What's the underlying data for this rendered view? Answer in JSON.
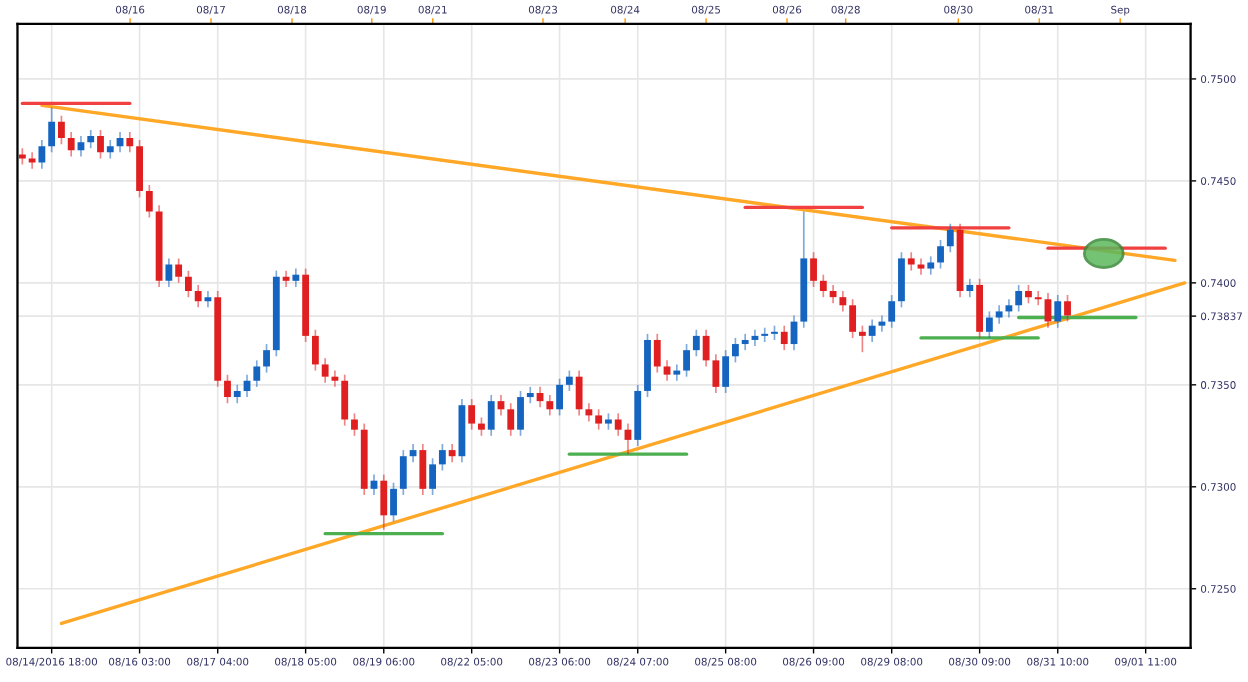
{
  "chart_data": {
    "type": "candlestick",
    "ylim": [
      0.7221,
      0.7527
    ],
    "categories": [
      null,
      null,
      null,
      "08/14/2016 18:00",
      null,
      null,
      null,
      null,
      null,
      null,
      null,
      null,
      "08/16 03:00",
      null,
      null,
      null,
      null,
      null,
      null,
      null,
      "08/17 04:00",
      null,
      null,
      null,
      null,
      null,
      null,
      null,
      null,
      "08/18 05:00",
      null,
      null,
      null,
      null,
      null,
      null,
      null,
      "08/19 06:00",
      null,
      null,
      null,
      null,
      null,
      null,
      null,
      null,
      "08/22 05:00",
      null,
      null,
      null,
      null,
      null,
      null,
      null,
      null,
      "08/23 06:00",
      null,
      null,
      null,
      null,
      null,
      null,
      null,
      "08/24 07:00",
      null,
      null,
      null,
      null,
      null,
      null,
      null,
      null,
      "08/25 08:00",
      null,
      null,
      null,
      null,
      null,
      null,
      null,
      null,
      "08/26 09:00",
      null,
      null,
      null,
      null,
      null,
      null,
      null,
      "08/29 08:00",
      null,
      null,
      null,
      null,
      null,
      null,
      null,
      null,
      "08/30 09:00",
      null,
      null,
      null,
      null,
      null,
      null,
      null,
      "08/31 10:00",
      null,
      null,
      null,
      null,
      null,
      null,
      null,
      null,
      "09/01 11:00",
      null,
      null,
      null,
      null
    ],
    "annotations": [
      "08/16",
      "08/17",
      "08/18",
      "08/19",
      "08/21",
      "08/23",
      "08/24",
      "08/25",
      "08/26",
      "08/28",
      "08/30",
      "08/31",
      "Sep"
    ],
    "yticks": [
      {
        "value": 0.725,
        "label": "0.7250"
      },
      {
        "value": 0.73,
        "label": "0.7300"
      },
      {
        "value": 0.735,
        "label": "0.7350"
      },
      {
        "value": 0.73837,
        "label": "0.73837"
      },
      {
        "value": 0.74,
        "label": "0.7400"
      },
      {
        "value": 0.745,
        "label": "0.7450"
      },
      {
        "value": 0.75,
        "label": "0.7500"
      }
    ],
    "grid": true,
    "series": [
      {
        "type": "line",
        "color": "#ffa726",
        "values": [
          null,
          null,
          0.7487,
          null,
          null,
          null,
          null,
          null,
          null,
          null,
          null,
          null,
          null,
          null,
          null,
          null,
          null,
          null,
          null,
          null,
          null,
          null,
          null,
          null,
          null,
          null,
          null,
          null,
          null,
          null,
          null,
          null,
          null,
          null,
          null,
          null,
          null,
          null,
          null,
          null,
          null,
          null,
          null,
          null,
          null,
          null,
          null,
          null,
          null,
          null,
          null,
          null,
          null,
          null,
          null,
          null,
          null,
          null,
          null,
          null,
          null,
          null,
          null,
          null,
          null,
          null,
          null,
          null,
          null,
          null,
          null,
          null,
          null,
          null,
          null,
          null,
          null,
          null,
          null,
          null,
          null,
          null,
          null,
          null,
          null,
          null,
          null,
          null,
          null,
          null,
          null,
          null,
          null,
          null,
          null,
          null,
          null,
          null,
          null,
          null,
          null,
          null,
          null,
          null,
          null,
          null,
          null,
          null,
          null,
          null,
          null,
          null,
          null,
          null,
          null,
          null,
          null,
          null,
          0.7411,
          null
        ]
      },
      {
        "type": "line",
        "color": "#ffa726",
        "values": [
          null,
          null,
          null,
          null,
          0.7233,
          null,
          null,
          null,
          null,
          null,
          null,
          null,
          null,
          null,
          null,
          null,
          null,
          null,
          null,
          null,
          null,
          null,
          null,
          null,
          null,
          null,
          null,
          null,
          null,
          null,
          null,
          null,
          null,
          null,
          null,
          null,
          null,
          null,
          null,
          null,
          null,
          null,
          null,
          null,
          null,
          null,
          null,
          null,
          null,
          null,
          null,
          null,
          null,
          null,
          null,
          null,
          null,
          null,
          null,
          null,
          null,
          null,
          null,
          null,
          null,
          null,
          null,
          null,
          null,
          null,
          null,
          null,
          null,
          null,
          null,
          null,
          null,
          null,
          null,
          null,
          null,
          null,
          null,
          null,
          null,
          null,
          null,
          null,
          null,
          null,
          null,
          null,
          null,
          null,
          null,
          null,
          null,
          null,
          null,
          null,
          null,
          null,
          null,
          null,
          null,
          null,
          null,
          null,
          null,
          null,
          null,
          null,
          null,
          null,
          null,
          null,
          null,
          null,
          null,
          0.74
        ]
      },
      {
        "type": "line",
        "color": "#f04040",
        "values": [
          0.7488,
          null,
          null,
          null,
          null,
          null,
          null,
          null,
          null,
          null,
          null,
          0.7488,
          null,
          null,
          null,
          null,
          null,
          null,
          null,
          null,
          null,
          null,
          null,
          null,
          null,
          null,
          null,
          null,
          null,
          null,
          null,
          null,
          null,
          null,
          null,
          null,
          null,
          null,
          null,
          null,
          null,
          null,
          null,
          null,
          null,
          null,
          null,
          null,
          null,
          null,
          null,
          null,
          null,
          null,
          null,
          null,
          null,
          null,
          null,
          null,
          null,
          null,
          null,
          null,
          null,
          null,
          null,
          null,
          null,
          null,
          null,
          null,
          null,
          null,
          null,
          null,
          null,
          null,
          null,
          null,
          null,
          null,
          null,
          null,
          null,
          null,
          null,
          null,
          null,
          null,
          null,
          null,
          null,
          null,
          null,
          null,
          null,
          null,
          null,
          null,
          null,
          null,
          null,
          null,
          null,
          null,
          null,
          null,
          null,
          null,
          null,
          null,
          null,
          null,
          null,
          null,
          null,
          null,
          null,
          null
        ]
      },
      {
        "type": "line",
        "color": "#4caf50",
        "values": [
          null,
          null,
          null,
          null,
          null,
          null,
          null,
          null,
          null,
          null,
          null,
          null,
          null,
          null,
          null,
          null,
          null,
          null,
          null,
          null,
          null,
          null,
          null,
          null,
          null,
          null,
          null,
          null,
          null,
          null,
          null,
          0.7277,
          null,
          null,
          null,
          null,
          null,
          null,
          null,
          null,
          null,
          null,
          null,
          0.7277,
          null,
          null,
          null,
          null,
          null,
          null,
          null,
          null,
          null,
          null,
          null,
          null,
          null,
          null,
          null,
          null,
          null,
          null,
          null,
          null,
          null,
          null,
          null,
          null,
          null,
          null,
          null,
          null,
          null,
          null,
          null,
          null,
          null,
          null,
          null,
          null,
          null,
          null,
          null,
          null,
          null,
          null,
          null,
          null,
          null,
          null,
          null,
          null,
          null,
          null,
          null,
          null,
          null,
          null,
          null,
          null,
          null,
          null,
          null,
          null,
          null,
          null,
          null,
          null,
          null,
          null,
          null,
          null,
          null,
          null,
          null,
          null,
          null,
          null,
          null,
          null
        ]
      },
      {
        "type": "line",
        "color": "#4caf50",
        "values": [
          null,
          null,
          null,
          null,
          null,
          null,
          null,
          null,
          null,
          null,
          null,
          null,
          null,
          null,
          null,
          null,
          null,
          null,
          null,
          null,
          null,
          null,
          null,
          null,
          null,
          null,
          null,
          null,
          null,
          null,
          null,
          null,
          null,
          null,
          null,
          null,
          null,
          null,
          null,
          null,
          null,
          null,
          null,
          null,
          null,
          null,
          null,
          null,
          null,
          null,
          null,
          null,
          null,
          null,
          null,
          null,
          0.7316,
          null,
          null,
          null,
          null,
          null,
          null,
          null,
          null,
          null,
          null,
          null,
          0.7316,
          null,
          null,
          null,
          null,
          null,
          null,
          null,
          null,
          null,
          null,
          null,
          null,
          null,
          null,
          null,
          null,
          null,
          null,
          null,
          null,
          null,
          null,
          null,
          null,
          null,
          null,
          null,
          null,
          null,
          null,
          null,
          null,
          null,
          null,
          null,
          null,
          null,
          null,
          null,
          null,
          null,
          null,
          null,
          null,
          null,
          null,
          null,
          null,
          null,
          null,
          null
        ]
      },
      {
        "type": "line",
        "color": "#f04040",
        "values": [
          null,
          null,
          null,
          null,
          null,
          null,
          null,
          null,
          null,
          null,
          null,
          null,
          null,
          null,
          null,
          null,
          null,
          null,
          null,
          null,
          null,
          null,
          null,
          null,
          null,
          null,
          null,
          null,
          null,
          null,
          null,
          null,
          null,
          null,
          null,
          null,
          null,
          null,
          null,
          null,
          null,
          null,
          null,
          null,
          null,
          null,
          null,
          null,
          null,
          null,
          null,
          null,
          null,
          null,
          null,
          null,
          null,
          null,
          null,
          null,
          null,
          null,
          null,
          null,
          null,
          null,
          null,
          null,
          null,
          null,
          null,
          null,
          null,
          null,
          0.7437,
          null,
          null,
          null,
          null,
          null,
          null,
          null,
          null,
          null,
          null,
          null,
          0.7437,
          null,
          null,
          null,
          null,
          null,
          null,
          null,
          null,
          null,
          null,
          null,
          null,
          null,
          null,
          null,
          null,
          null,
          null,
          null,
          null,
          null,
          null,
          null,
          null,
          null,
          null,
          null,
          null,
          null,
          null,
          null,
          null,
          null
        ]
      },
      {
        "type": "line",
        "color": "#f04040",
        "values": [
          null,
          null,
          null,
          null,
          null,
          null,
          null,
          null,
          null,
          null,
          null,
          null,
          null,
          null,
          null,
          null,
          null,
          null,
          null,
          null,
          null,
          null,
          null,
          null,
          null,
          null,
          null,
          null,
          null,
          null,
          null,
          null,
          null,
          null,
          null,
          null,
          null,
          null,
          null,
          null,
          null,
          null,
          null,
          null,
          null,
          null,
          null,
          null,
          null,
          null,
          null,
          null,
          null,
          null,
          null,
          null,
          null,
          null,
          null,
          null,
          null,
          null,
          null,
          null,
          null,
          null,
          null,
          null,
          null,
          null,
          null,
          null,
          null,
          null,
          null,
          null,
          null,
          null,
          null,
          null,
          null,
          null,
          null,
          null,
          null,
          null,
          null,
          null,
          null,
          0.7427,
          null,
          null,
          null,
          null,
          null,
          null,
          null,
          null,
          null,
          null,
          null,
          0.7427,
          null,
          null,
          null,
          null,
          null,
          null,
          null,
          null,
          null,
          null,
          null,
          null,
          null,
          null,
          null,
          null,
          null,
          null
        ]
      },
      {
        "type": "line",
        "color": "#4caf50",
        "values": [
          null,
          null,
          null,
          null,
          null,
          null,
          null,
          null,
          null,
          null,
          null,
          null,
          null,
          null,
          null,
          null,
          null,
          null,
          null,
          null,
          null,
          null,
          null,
          null,
          null,
          null,
          null,
          null,
          null,
          null,
          null,
          null,
          null,
          null,
          null,
          null,
          null,
          null,
          null,
          null,
          null,
          null,
          null,
          null,
          null,
          null,
          null,
          null,
          null,
          null,
          null,
          null,
          null,
          null,
          null,
          null,
          null,
          null,
          null,
          null,
          null,
          null,
          null,
          null,
          null,
          null,
          null,
          null,
          null,
          null,
          null,
          null,
          null,
          null,
          null,
          null,
          null,
          null,
          null,
          null,
          null,
          null,
          null,
          null,
          null,
          null,
          null,
          null,
          null,
          null,
          null,
          null,
          0.7373,
          null,
          null,
          null,
          null,
          null,
          null,
          null,
          null,
          null,
          null,
          null,
          0.7373,
          null,
          null,
          null,
          null,
          null,
          null,
          null,
          null,
          null,
          null,
          null,
          null,
          null,
          null,
          null
        ]
      },
      {
        "type": "line",
        "color": "#f04040",
        "values": [
          null,
          null,
          null,
          null,
          null,
          null,
          null,
          null,
          null,
          null,
          null,
          null,
          null,
          null,
          null,
          null,
          null,
          null,
          null,
          null,
          null,
          null,
          null,
          null,
          null,
          null,
          null,
          null,
          null,
          null,
          null,
          null,
          null,
          null,
          null,
          null,
          null,
          null,
          null,
          null,
          null,
          null,
          null,
          null,
          null,
          null,
          null,
          null,
          null,
          null,
          null,
          null,
          null,
          null,
          null,
          null,
          null,
          null,
          null,
          null,
          null,
          null,
          null,
          null,
          null,
          null,
          null,
          null,
          null,
          null,
          null,
          null,
          null,
          null,
          null,
          null,
          null,
          null,
          null,
          null,
          null,
          null,
          null,
          null,
          null,
          null,
          null,
          null,
          null,
          null,
          null,
          null,
          null,
          null,
          null,
          null,
          null,
          null,
          null,
          null,
          null,
          null,
          null,
          null,
          null,
          0.7417,
          null,
          null,
          null,
          null,
          null,
          null,
          null,
          null,
          null,
          null,
          null,
          0.7417,
          null,
          null
        ]
      },
      {
        "type": "line",
        "color": "#4caf50",
        "values": [
          null,
          null,
          null,
          null,
          null,
          null,
          null,
          null,
          null,
          null,
          null,
          null,
          null,
          null,
          null,
          null,
          null,
          null,
          null,
          null,
          null,
          null,
          null,
          null,
          null,
          null,
          null,
          null,
          null,
          null,
          null,
          null,
          null,
          null,
          null,
          null,
          null,
          null,
          null,
          null,
          null,
          null,
          null,
          null,
          null,
          null,
          null,
          null,
          null,
          null,
          null,
          null,
          null,
          null,
          null,
          null,
          null,
          null,
          null,
          null,
          null,
          null,
          null,
          null,
          null,
          null,
          null,
          null,
          null,
          null,
          null,
          null,
          null,
          null,
          null,
          null,
          null,
          null,
          null,
          null,
          null,
          null,
          null,
          null,
          null,
          null,
          null,
          null,
          null,
          null,
          null,
          null,
          null,
          null,
          null,
          null,
          null,
          null,
          null,
          null,
          null,
          null,
          0.7383,
          null,
          null,
          null,
          null,
          null,
          null,
          null,
          null,
          null,
          null,
          null,
          0.7383,
          null,
          null,
          null,
          null,
          null
        ]
      },
      {
        "ohlc": [
          [
            0.7463,
            0.7466,
            0.7458,
            0.7461
          ],
          [
            0.7461,
            0.7464,
            0.7456,
            0.7459
          ],
          [
            0.7459,
            0.747,
            0.7456,
            0.7467
          ],
          [
            0.7467,
            0.7486,
            0.7464,
            0.7479
          ],
          [
            0.7479,
            0.7482,
            0.7468,
            0.7471
          ],
          [
            0.7471,
            0.7474,
            0.7462,
            0.7465
          ],
          [
            0.7465,
            0.7472,
            0.7462,
            0.7469
          ],
          [
            0.7469,
            0.7475,
            0.7466,
            0.7472
          ],
          [
            0.7472,
            0.7475,
            0.7461,
            0.7464
          ],
          [
            0.7464,
            0.747,
            0.7461,
            0.7467
          ],
          [
            0.7467,
            0.7474,
            0.7464,
            0.7471
          ],
          [
            0.7471,
            0.7474,
            0.7464,
            0.7467
          ],
          [
            0.7467,
            0.747,
            0.7442,
            0.7445
          ],
          [
            0.7445,
            0.7448,
            0.7432,
            0.7435
          ],
          [
            0.7435,
            0.7438,
            0.7398,
            0.7401
          ],
          [
            0.7401,
            0.7412,
            0.7398,
            0.7409
          ],
          [
            0.7409,
            0.7412,
            0.74,
            0.7403
          ],
          [
            0.7403,
            0.7406,
            0.7393,
            0.7396
          ],
          [
            0.7396,
            0.7399,
            0.7388,
            0.7391
          ],
          [
            0.7391,
            0.7396,
            0.7388,
            0.7393
          ],
          [
            0.7393,
            0.7396,
            0.7349,
            0.7352
          ],
          [
            0.7352,
            0.7355,
            0.7341,
            0.7344
          ],
          [
            0.7344,
            0.735,
            0.7341,
            0.7347
          ],
          [
            0.7347,
            0.7355,
            0.7344,
            0.7352
          ],
          [
            0.7352,
            0.7362,
            0.7349,
            0.7359
          ],
          [
            0.7359,
            0.737,
            0.7356,
            0.7367
          ],
          [
            0.7367,
            0.7406,
            0.7364,
            0.7403
          ],
          [
            0.7403,
            0.7406,
            0.7398,
            0.7401
          ],
          [
            0.7401,
            0.7407,
            0.7398,
            0.7404
          ],
          [
            0.7404,
            0.7407,
            0.7371,
            0.7374
          ],
          [
            0.7374,
            0.7377,
            0.7357,
            0.736
          ],
          [
            0.736,
            0.7363,
            0.7351,
            0.7354
          ],
          [
            0.7354,
            0.7357,
            0.7349,
            0.7352
          ],
          [
            0.7352,
            0.7355,
            0.733,
            0.7333
          ],
          [
            0.7333,
            0.7336,
            0.7325,
            0.7328
          ],
          [
            0.7328,
            0.7331,
            0.7296,
            0.7299
          ],
          [
            0.7299,
            0.7306,
            0.7296,
            0.7303
          ],
          [
            0.7303,
            0.7306,
            0.7279,
            0.7286
          ],
          [
            0.7286,
            0.7302,
            0.7283,
            0.7299
          ],
          [
            0.7299,
            0.7318,
            0.7296,
            0.7315
          ],
          [
            0.7315,
            0.7321,
            0.7312,
            0.7318
          ],
          [
            0.7318,
            0.7321,
            0.7296,
            0.7299
          ],
          [
            0.7299,
            0.7314,
            0.7296,
            0.7311
          ],
          [
            0.7311,
            0.7321,
            0.7308,
            0.7318
          ],
          [
            0.7318,
            0.7321,
            0.7312,
            0.7315
          ],
          [
            0.7315,
            0.7343,
            0.7312,
            0.734
          ],
          [
            0.734,
            0.7343,
            0.7328,
            0.7331
          ],
          [
            0.7331,
            0.7334,
            0.7325,
            0.7328
          ],
          [
            0.7328,
            0.7345,
            0.7325,
            0.7342
          ],
          [
            0.7342,
            0.7345,
            0.7335,
            0.7338
          ],
          [
            0.7338,
            0.7341,
            0.7325,
            0.7328
          ],
          [
            0.7328,
            0.7347,
            0.7325,
            0.7344
          ],
          [
            0.7344,
            0.7349,
            0.7341,
            0.7346
          ],
          [
            0.7346,
            0.7349,
            0.7339,
            0.7342
          ],
          [
            0.7342,
            0.7345,
            0.7335,
            0.7338
          ],
          [
            0.7338,
            0.7353,
            0.7335,
            0.735
          ],
          [
            0.735,
            0.7357,
            0.7347,
            0.7354
          ],
          [
            0.7354,
            0.7357,
            0.7335,
            0.7338
          ],
          [
            0.7338,
            0.7341,
            0.7332,
            0.7335
          ],
          [
            0.7335,
            0.7338,
            0.7328,
            0.7331
          ],
          [
            0.7331,
            0.7336,
            0.7328,
            0.7333
          ],
          [
            0.7333,
            0.7336,
            0.7325,
            0.7328
          ],
          [
            0.7328,
            0.7331,
            0.7316,
            0.7323
          ],
          [
            0.7323,
            0.735,
            0.732,
            0.7347
          ],
          [
            0.7347,
            0.7375,
            0.7344,
            0.7372
          ],
          [
            0.7372,
            0.7375,
            0.7356,
            0.7359
          ],
          [
            0.7359,
            0.7362,
            0.7352,
            0.7355
          ],
          [
            0.7355,
            0.736,
            0.7352,
            0.7357
          ],
          [
            0.7357,
            0.737,
            0.7354,
            0.7367
          ],
          [
            0.7367,
            0.7377,
            0.7364,
            0.7374
          ],
          [
            0.7374,
            0.7377,
            0.7359,
            0.7362
          ],
          [
            0.7362,
            0.7365,
            0.7346,
            0.7349
          ],
          [
            0.7349,
            0.7367,
            0.7346,
            0.7364
          ],
          [
            0.7364,
            0.7373,
            0.7361,
            0.737
          ],
          [
            0.737,
            0.7375,
            0.7367,
            0.7372
          ],
          [
            0.7372,
            0.7377,
            0.7369,
            0.7374
          ],
          [
            0.7374,
            0.7378,
            0.7371,
            0.7375
          ],
          [
            0.7375,
            0.7379,
            0.7372,
            0.7376
          ],
          [
            0.7376,
            0.7379,
            0.7367,
            0.737
          ],
          [
            0.737,
            0.7384,
            0.7367,
            0.7381
          ],
          [
            0.7381,
            0.7435,
            0.7378,
            0.7412
          ],
          [
            0.7412,
            0.7415,
            0.7398,
            0.7401
          ],
          [
            0.7401,
            0.7404,
            0.7393,
            0.7396
          ],
          [
            0.7396,
            0.7399,
            0.739,
            0.7393
          ],
          [
            0.7393,
            0.7396,
            0.7386,
            0.7389
          ],
          [
            0.7389,
            0.7392,
            0.7373,
            0.7376
          ],
          [
            0.7376,
            0.7379,
            0.7366,
            0.7374
          ],
          [
            0.7374,
            0.7382,
            0.7371,
            0.7379
          ],
          [
            0.7379,
            0.7384,
            0.7376,
            0.7381
          ],
          [
            0.7381,
            0.7394,
            0.7378,
            0.7391
          ],
          [
            0.7391,
            0.7415,
            0.7388,
            0.7412
          ],
          [
            0.7412,
            0.7415,
            0.7406,
            0.7409
          ],
          [
            0.7409,
            0.7412,
            0.7404,
            0.7407
          ],
          [
            0.7407,
            0.7413,
            0.7404,
            0.741
          ],
          [
            0.741,
            0.7421,
            0.7407,
            0.7418
          ],
          [
            0.7418,
            0.7429,
            0.7415,
            0.7426
          ],
          [
            0.7426,
            0.7429,
            0.7393,
            0.7396
          ],
          [
            0.7396,
            0.7402,
            0.7393,
            0.7399
          ],
          [
            0.7399,
            0.7402,
            0.7373,
            0.7376
          ],
          [
            0.7376,
            0.7386,
            0.7373,
            0.7383
          ],
          [
            0.7383,
            0.7389,
            0.738,
            0.7386
          ],
          [
            0.7386,
            0.7392,
            0.7383,
            0.7389
          ],
          [
            0.7389,
            0.7399,
            0.7386,
            0.7396
          ],
          [
            0.7396,
            0.7399,
            0.739,
            0.7393
          ],
          [
            0.7393,
            0.7396,
            0.7389,
            0.7392
          ],
          [
            0.7392,
            0.7395,
            0.7378,
            0.7381
          ],
          [
            0.7381,
            0.7394,
            0.7378,
            0.7391
          ],
          [
            0.7391,
            0.7394,
            0.7381,
            0.7384
          ],
          null,
          null,
          null,
          null,
          null,
          null,
          null,
          null,
          null,
          null,
          null,
          null
        ],
        "colors": [
          "#e02020",
          "#e02020",
          "#1565c0",
          "#1565c0",
          "#e02020",
          "#e02020",
          "#1565c0",
          "#1565c0",
          "#e02020",
          "#1565c0",
          "#1565c0",
          "#e02020",
          "#e02020",
          "#e02020",
          "#e02020",
          "#1565c0",
          "#e02020",
          "#e02020",
          "#e02020",
          "#1565c0",
          "#e02020",
          "#e02020",
          "#1565c0",
          "#1565c0",
          "#1565c0",
          "#1565c0",
          "#1565c0",
          "#e02020",
          "#1565c0",
          "#e02020",
          "#e02020",
          "#e02020",
          "#e02020",
          "#e02020",
          "#e02020",
          "#e02020",
          "#1565c0",
          "#e02020",
          "#1565c0",
          "#1565c0",
          "#1565c0",
          "#e02020",
          "#1565c0",
          "#1565c0",
          "#e02020",
          "#1565c0",
          "#e02020",
          "#e02020",
          "#1565c0",
          "#e02020",
          "#e02020",
          "#1565c0",
          "#1565c0",
          "#e02020",
          "#e02020",
          "#1565c0",
          "#1565c0",
          "#e02020",
          "#e02020",
          "#e02020",
          "#1565c0",
          "#e02020",
          "#e02020",
          "#1565c0",
          "#1565c0",
          "#e02020",
          "#e02020",
          "#1565c0",
          "#1565c0",
          "#1565c0",
          "#e02020",
          "#e02020",
          "#1565c0",
          "#1565c0",
          "#1565c0",
          "#1565c0",
          "#1565c0",
          "#1565c0",
          "#e02020",
          "#1565c0",
          "#1565c0",
          "#e02020",
          "#e02020",
          "#e02020",
          "#e02020",
          "#e02020",
          "#e02020",
          "#1565c0",
          "#1565c0",
          "#1565c0",
          "#1565c0",
          "#e02020",
          "#e02020",
          "#1565c0",
          "#1565c0",
          "#1565c0",
          "#e02020",
          "#1565c0",
          "#e02020",
          "#1565c0",
          "#1565c0",
          "#1565c0",
          "#1565c0",
          "#e02020",
          "#e02020",
          "#e02020",
          "#1565c0",
          "#e02020",
          null,
          null,
          null,
          null,
          null,
          null,
          null,
          null,
          null,
          null,
          null,
          null
        ]
      }
    ]
  }
}
